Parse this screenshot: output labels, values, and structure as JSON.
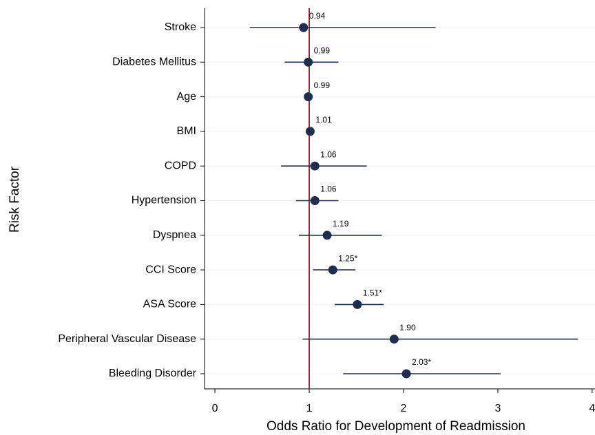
{
  "chart_data": {
    "type": "forest",
    "x_label": "Odds Ratio for Development of Readmission",
    "y_label": "Risk Factor",
    "categories": [
      "Stroke",
      "Diabetes Mellitus",
      "Age",
      "BMI",
      "COPD",
      "Hypertension",
      "Dyspnea",
      "CCI Score",
      "ASA Score",
      "Peripheral Vascular Disease",
      "Bleeding Disorder"
    ],
    "values": [
      0.94,
      0.99,
      0.99,
      1.01,
      1.06,
      1.06,
      1.19,
      1.25,
      1.51,
      1.9,
      2.03
    ],
    "value_labels": [
      "0.94",
      "0.99",
      "0.99",
      "1.01",
      "1.06",
      "1.06",
      "1.19",
      "1.25*",
      "1.51*",
      "1.90",
      "2.03*"
    ],
    "ci_low": [
      0.37,
      0.74,
      0.98,
      1.0,
      0.7,
      0.86,
      0.89,
      1.04,
      1.27,
      0.93,
      1.36
    ],
    "ci_high": [
      2.34,
      1.31,
      1.0,
      1.02,
      1.61,
      1.31,
      1.77,
      1.49,
      1.79,
      3.85,
      3.03
    ],
    "color": "#1f2d4f",
    "reference_line": 1,
    "reference_color": "#b01c3a",
    "xlim": [
      -0.11,
      4.03
    ],
    "xticks": [
      0,
      1,
      2,
      3,
      4
    ],
    "grid": true
  }
}
